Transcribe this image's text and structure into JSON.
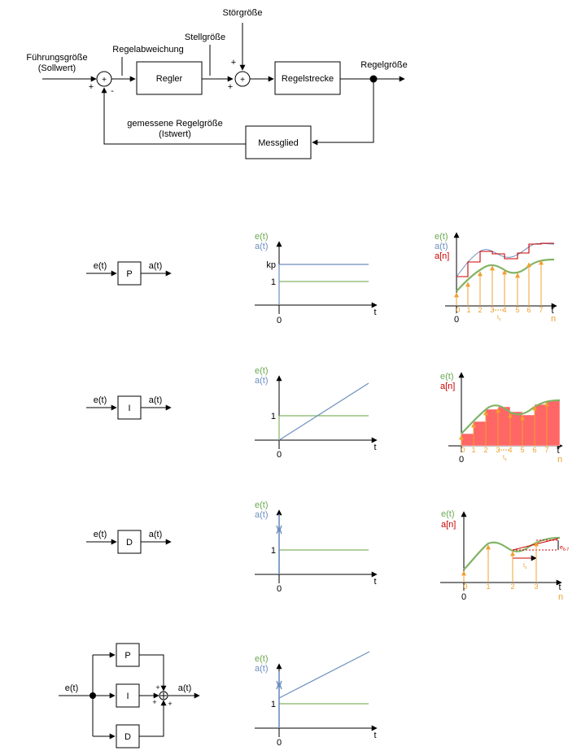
{
  "loop": {
    "reference": "Führungsgröße",
    "reference_sub": "(Sollwert)",
    "error": "Regelabweichung",
    "manipulated": "Stellgröße",
    "disturbance": "Störgröße",
    "output": "Regelgröße",
    "measured": "gemessene Regelgröße",
    "measured_sub": "(Istwert)",
    "controller": "Regler",
    "plant": "Regelstrecke",
    "sensor": "Messglied",
    "plus": "+",
    "minus": "-"
  },
  "blocks": {
    "input": "e(t)",
    "output": "a(t)",
    "p": "P",
    "i": "I",
    "d": "D"
  },
  "plots": {
    "e_label": "e(t)",
    "a_label": "a(t)",
    "an_label": "a[n]",
    "t": "t",
    "zero": "0",
    "one": "1",
    "kp": "kp",
    "n": "n",
    "ts": "t",
    "ts_sub": "s",
    "e67": "e",
    "e67_sub": "6-7",
    "ticks_p": [
      "0",
      "1",
      "2",
      "3",
      "4",
      "5",
      "6",
      "7"
    ],
    "ticks_i": [
      "0",
      "1",
      "2",
      "3",
      "4",
      "5",
      "6",
      "7"
    ],
    "ticks_d": [
      "0",
      "1",
      "2",
      "3"
    ]
  },
  "colors": {
    "green": "#82b366",
    "blue": "#6c8ebf",
    "red": "#cc0000",
    "fill": "#ff6666",
    "orange": "#f0a030"
  }
}
